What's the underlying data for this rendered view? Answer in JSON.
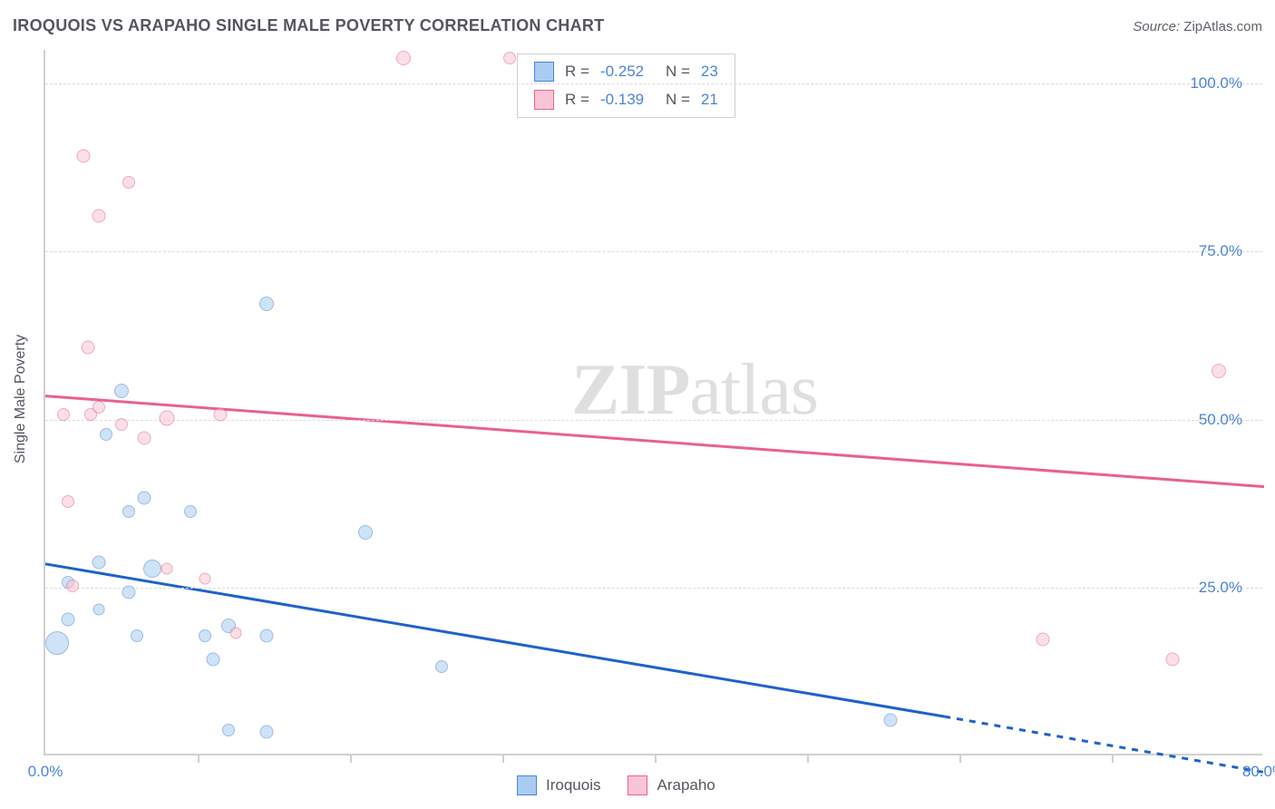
{
  "title": "IROQUOIS VS ARAPAHO SINGLE MALE POVERTY CORRELATION CHART",
  "source_label": "Source:",
  "source_value": "ZipAtlas.com",
  "y_axis_title": "Single Male Poverty",
  "watermark": {
    "part1": "ZIP",
    "part2": "atlas"
  },
  "chart": {
    "type": "scatter",
    "x_domain": [
      0,
      80
    ],
    "y_domain": [
      0,
      105
    ],
    "background_color": "#ffffff",
    "grid_color": "#dcdcdc",
    "axis_color": "#d0d0d0",
    "tick_label_color": "#4a84d6",
    "tick_fontsize": 17,
    "title_color": "#555560",
    "title_fontsize": 18,
    "y_ticks": [
      {
        "value": 25,
        "label": "25.0%"
      },
      {
        "value": 50,
        "label": "50.0%"
      },
      {
        "value": 75,
        "label": "75.0%"
      },
      {
        "value": 100,
        "label": "100.0%"
      }
    ],
    "x_ticks": [
      {
        "value": 0,
        "label": "0.0%"
      },
      {
        "value": 80,
        "label": "80.0%"
      }
    ],
    "x_minor_ticks": [
      10,
      20,
      30,
      40,
      50,
      60,
      70
    ],
    "series": [
      {
        "name": "Iroquois",
        "fill_color": "#a9cdf1",
        "stroke_color": "#4a84d6",
        "fill_opacity": 0.55,
        "stroke_width": 1.5,
        "trend": {
          "solid": {
            "x1": 0,
            "y1": 28.5,
            "x2": 59,
            "y2": 5.8
          },
          "dashed": {
            "x1": 59,
            "y1": 5.8,
            "x2": 80,
            "y2": -2.5
          },
          "color": "#1e62c9",
          "width": 3
        },
        "points": [
          {
            "x": 14.5,
            "y": 67,
            "size": 16
          },
          {
            "x": 5,
            "y": 54,
            "size": 16
          },
          {
            "x": 4,
            "y": 47.5,
            "size": 14
          },
          {
            "x": 6.5,
            "y": 38,
            "size": 15
          },
          {
            "x": 5.5,
            "y": 36,
            "size": 14
          },
          {
            "x": 9.5,
            "y": 36,
            "size": 14
          },
          {
            "x": 21,
            "y": 33,
            "size": 16
          },
          {
            "x": 7,
            "y": 27.5,
            "size": 20
          },
          {
            "x": 3.5,
            "y": 28.5,
            "size": 15
          },
          {
            "x": 1.5,
            "y": 25.5,
            "size": 14
          },
          {
            "x": 5.5,
            "y": 24,
            "size": 15
          },
          {
            "x": 3.5,
            "y": 21.5,
            "size": 13
          },
          {
            "x": 1.5,
            "y": 20,
            "size": 15
          },
          {
            "x": 12,
            "y": 19,
            "size": 16
          },
          {
            "x": 6,
            "y": 17.5,
            "size": 14
          },
          {
            "x": 10.5,
            "y": 17.5,
            "size": 14
          },
          {
            "x": 14.5,
            "y": 17.5,
            "size": 15
          },
          {
            "x": 0.8,
            "y": 16.5,
            "size": 26
          },
          {
            "x": 11,
            "y": 14,
            "size": 15
          },
          {
            "x": 26,
            "y": 13,
            "size": 14
          },
          {
            "x": 12,
            "y": 3.5,
            "size": 14
          },
          {
            "x": 14.5,
            "y": 3.2,
            "size": 15
          },
          {
            "x": 55.5,
            "y": 5,
            "size": 15
          }
        ]
      },
      {
        "name": "Arapaho",
        "fill_color": "#f9c5d4",
        "stroke_color": "#e9618c",
        "fill_opacity": 0.55,
        "stroke_width": 1.5,
        "trend": {
          "solid": {
            "x1": 0,
            "y1": 53.5,
            "x2": 80,
            "y2": 40
          },
          "color": "#e9618c",
          "width": 3
        },
        "points": [
          {
            "x": 23.5,
            "y": 103.5,
            "size": 16
          },
          {
            "x": 30.5,
            "y": 103.5,
            "size": 14
          },
          {
            "x": 2.5,
            "y": 89,
            "size": 15
          },
          {
            "x": 5.5,
            "y": 85,
            "size": 14
          },
          {
            "x": 3.5,
            "y": 80,
            "size": 15
          },
          {
            "x": 2.8,
            "y": 60.5,
            "size": 15
          },
          {
            "x": 77,
            "y": 57,
            "size": 16
          },
          {
            "x": 1.2,
            "y": 50.5,
            "size": 14
          },
          {
            "x": 3,
            "y": 50.5,
            "size": 14
          },
          {
            "x": 5,
            "y": 49,
            "size": 14
          },
          {
            "x": 8,
            "y": 50,
            "size": 17
          },
          {
            "x": 11.5,
            "y": 50.5,
            "size": 15
          },
          {
            "x": 3.5,
            "y": 51.5,
            "size": 14
          },
          {
            "x": 6.5,
            "y": 47,
            "size": 15
          },
          {
            "x": 1.5,
            "y": 37.5,
            "size": 14
          },
          {
            "x": 8,
            "y": 27.5,
            "size": 13
          },
          {
            "x": 10.5,
            "y": 26,
            "size": 13
          },
          {
            "x": 1.8,
            "y": 25,
            "size": 14
          },
          {
            "x": 12.5,
            "y": 18,
            "size": 13
          },
          {
            "x": 65.5,
            "y": 17,
            "size": 15
          },
          {
            "x": 74,
            "y": 14,
            "size": 15
          }
        ]
      }
    ]
  },
  "stats_box": {
    "rows": [
      {
        "swatch_fill": "#a9cdf1",
        "swatch_stroke": "#4a84d6",
        "r_label": "R =",
        "r_value": "-0.252",
        "n_label": "N =",
        "n_value": "23"
      },
      {
        "swatch_fill": "#f9c5d4",
        "swatch_stroke": "#e9618c",
        "r_label": "R =",
        "r_value": "-0.139",
        "n_label": "N =",
        "n_value": "21"
      }
    ]
  },
  "bottom_legend": {
    "items": [
      {
        "swatch_fill": "#a9cdf1",
        "swatch_stroke": "#4a84d6",
        "label": "Iroquois"
      },
      {
        "swatch_fill": "#f9c5d4",
        "swatch_stroke": "#e9618c",
        "label": "Arapaho"
      }
    ]
  }
}
